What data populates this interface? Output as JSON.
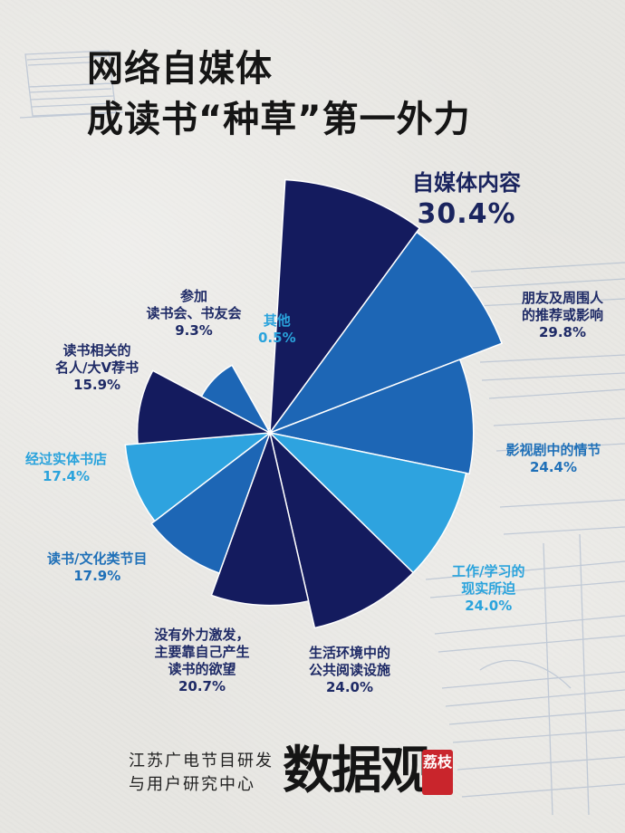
{
  "title": {
    "line1": "网络自媒体",
    "line2": "成读书“种草”第一外力"
  },
  "footer": {
    "org_line1": "江苏广电节目研发",
    "org_line2": "与用户研究中心",
    "logo_text": "数据观",
    "seal_text": "荔枝"
  },
  "colors": {
    "dark": "#141b5e",
    "mid": "#1d66b5",
    "light": "#2ea3df"
  },
  "chart_data": {
    "type": "pie",
    "variant": "polar-area",
    "title": "",
    "unit": "%",
    "categories": [
      "自媒体内容",
      "朋友及周围人的推荐或影响",
      "影视剧中的情节",
      "工作/学习的现实所迫",
      "生活环境中的公共阅读设施",
      "没有外力激发，主要靠自己产生读书的欲望",
      "读书/文化类节目",
      "经过实体书店",
      "读书相关的名人/大V荐书",
      "参加读书会、书友会",
      "其他"
    ],
    "values": [
      30.4,
      29.8,
      24.4,
      24.0,
      24.0,
      20.7,
      17.9,
      17.4,
      15.9,
      9.3,
      0.5
    ],
    "slice_colors": [
      "#141b5e",
      "#1d66b5",
      "#1d66b5",
      "#2ea3df",
      "#141b5e",
      "#141b5e",
      "#1d66b5",
      "#2ea3df",
      "#141b5e",
      "#1d66b5",
      "#2ea3df"
    ],
    "labels": [
      {
        "lines": [
          "自媒体内容"
        ],
        "pct": "30.4%"
      },
      {
        "lines": [
          "朋友及周围人",
          "的推荐或影响"
        ],
        "pct": "29.8%"
      },
      {
        "lines": [
          "影视剧中的情节"
        ],
        "pct": "24.4%"
      },
      {
        "lines": [
          "工作/学习的",
          "现实所迫"
        ],
        "pct": "24.0%"
      },
      {
        "lines": [
          "生活环境中的",
          "公共阅读设施"
        ],
        "pct": "24.0%"
      },
      {
        "lines": [
          "没有外力激发，",
          "主要靠自己产生",
          "读书的欲望"
        ],
        "pct": "20.7%"
      },
      {
        "lines": [
          "读书/文化类节目"
        ],
        "pct": "17.9%"
      },
      {
        "lines": [
          "经过实体书店"
        ],
        "pct": "17.4%"
      },
      {
        "lines": [
          "读书相关的",
          "名人/大V荐书"
        ],
        "pct": "15.9%"
      },
      {
        "lines": [
          "参加",
          "读书会、书友会"
        ],
        "pct": "9.3%"
      },
      {
        "lines": [
          "其他"
        ],
        "pct": "0.5%"
      }
    ]
  }
}
